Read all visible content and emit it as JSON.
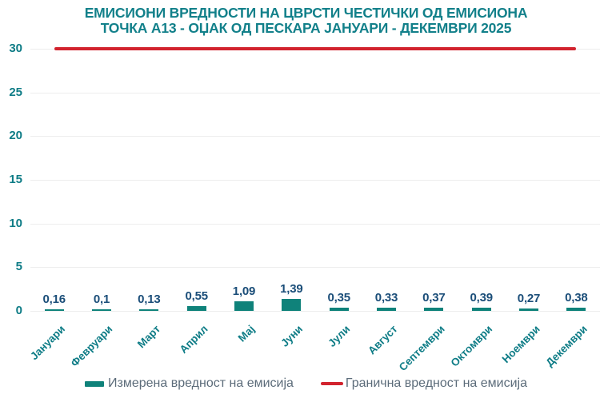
{
  "title": {
    "line1": "ЕМИСИОНИ ВРЕДНОСТИ НА ЦВРСТИ ЧЕСТИЧКИ ОД ЕМИСИОНА",
    "line2": "ТОЧКА А13 - ОЏАК ОД ПЕСКАРА ЈАНУАРИ - ДЕКЕМВРИ 2025"
  },
  "chart_data": {
    "type": "bar",
    "title": "ЕМИСИОНИ ВРЕДНОСТИ НА ЦВРСТИ ЧЕСТИЧКИ ОД ЕМИСИОНА ТОЧКА А13 - ОЏАК ОД ПЕСКАРА ЈАНУАРИ - ДЕКЕМВРИ 2025",
    "categories": [
      "Јануари",
      "Февруари",
      "Март",
      "Април",
      "Мај",
      "Јуни",
      "Јули",
      "Август",
      "Септември",
      "Октомври",
      "Ноември",
      "Декември"
    ],
    "values": [
      0.16,
      0.1,
      0.13,
      0.55,
      1.09,
      1.39,
      0.35,
      0.33,
      0.37,
      0.39,
      0.27,
      0.38
    ],
    "value_labels": [
      "0,16",
      "0,1",
      "0,13",
      "0,55",
      "1,09",
      "1,39",
      "0,35",
      "0,33",
      "0,37",
      "0,39",
      "0,27",
      "0,38"
    ],
    "limit_value": 30,
    "ylim": [
      0,
      30
    ],
    "yticks": [
      0,
      5,
      10,
      15,
      20,
      25,
      30
    ],
    "grid": true,
    "legend_position": "bottom",
    "series": [
      {
        "name": "Измерена вредност на емисија",
        "type": "bar",
        "color": "#0F827A"
      },
      {
        "name": "Гранична вредност на емисија",
        "type": "line",
        "color": "#D2232E",
        "value": 30
      }
    ]
  },
  "colors": {
    "title_teal": "#12808A",
    "axis_teal": "#0E7C86",
    "bar_teal": "#0F827A",
    "value_navy": "#1B4E79",
    "limit_red": "#D2232E",
    "legend_text": "#5C6C7A",
    "gridline": "#EDEDED"
  }
}
